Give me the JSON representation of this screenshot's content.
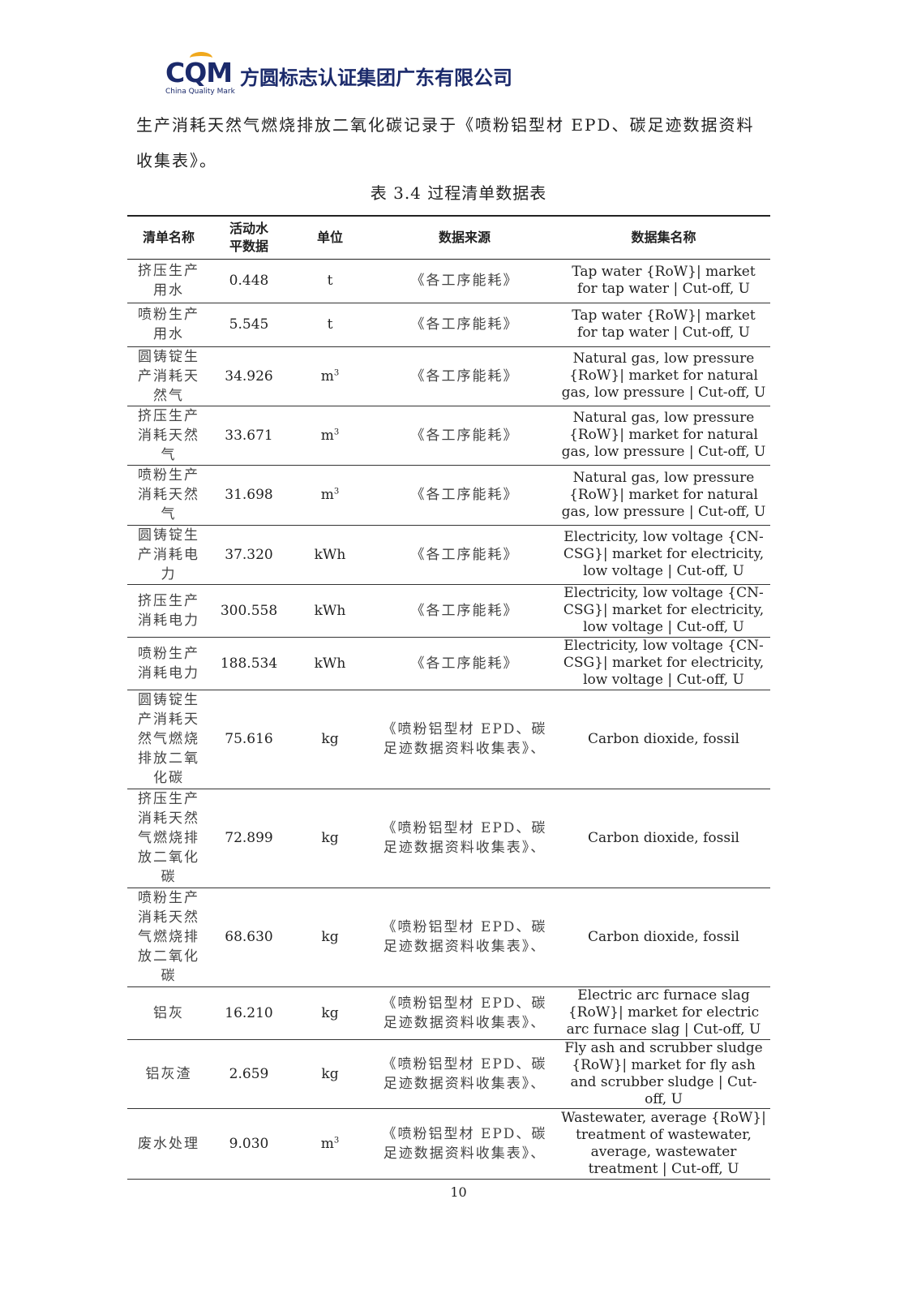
{
  "header": {
    "logo_text": "CQM",
    "logo_subtitle": "China Quality Mark",
    "company": "方圆标志认证集团广东有限公司",
    "brand_color": "#1b2a6b",
    "accent_color": "#f0a81c"
  },
  "paragraph": "生产消耗天然气燃烧排放二氧化碳记录于《喷粉铝型材 EPD、碳足迹数据资料收集表》。",
  "caption": "表 3.4 过程清单数据表",
  "table": {
    "headers": [
      "清单名称",
      "活动水平数据",
      "单位",
      "数据来源",
      "数据集名称"
    ],
    "rows": [
      {
        "name": "挤压生产用水",
        "value": "0.448",
        "unit": "t",
        "unit_sup": "",
        "source": "《各工序能耗》",
        "dataset": "Tap water {RoW}| market for tap water | Cut-off, U"
      },
      {
        "name": "喷粉生产用水",
        "value": "5.545",
        "unit": "t",
        "unit_sup": "",
        "source": "《各工序能耗》",
        "dataset": "Tap water {RoW}| market for tap water | Cut-off, U"
      },
      {
        "name": "圆铸锭生产消耗天然气",
        "value": "34.926",
        "unit": "m",
        "unit_sup": "3",
        "source": "《各工序能耗》",
        "dataset": "Natural gas, low pressure {RoW}| market for natural gas, low pressure | Cut-off, U"
      },
      {
        "name": "挤压生产消耗天然气",
        "value": "33.671",
        "unit": "m",
        "unit_sup": "3",
        "source": "《各工序能耗》",
        "dataset": "Natural gas, low pressure {RoW}| market for natural gas, low pressure | Cut-off, U"
      },
      {
        "name": "喷粉生产消耗天然气",
        "value": "31.698",
        "unit": "m",
        "unit_sup": "3",
        "source": "《各工序能耗》",
        "dataset": "Natural gas, low pressure {RoW}| market for natural gas, low pressure | Cut-off, U"
      },
      {
        "name": "圆铸锭生产消耗电力",
        "value": "37.320",
        "unit": "kWh",
        "unit_sup": "",
        "source": "《各工序能耗》",
        "dataset": "Electricity, low voltage {CN-CSG}| market for electricity, low voltage | Cut-off, U"
      },
      {
        "name": "挤压生产消耗电力",
        "value": "300.558",
        "unit": "kWh",
        "unit_sup": "",
        "source": "《各工序能耗》",
        "dataset": "Electricity, low voltage {CN-CSG}| market for electricity, low voltage | Cut-off, U"
      },
      {
        "name": "喷粉生产消耗电力",
        "value": "188.534",
        "unit": "kWh",
        "unit_sup": "",
        "source": "《各工序能耗》",
        "dataset": "Electricity, low voltage {CN-CSG}| market for electricity, low voltage | Cut-off, U"
      },
      {
        "name": "圆铸锭生产消耗天然气燃烧排放二氧化碳",
        "value": "75.616",
        "unit": "kg",
        "unit_sup": "",
        "source": "《喷粉铝型材 EPD、碳足迹数据资料收集表》、",
        "dataset": "Carbon dioxide, fossil"
      },
      {
        "name": "挤压生产消耗天然气燃烧排放二氧化碳",
        "value": "72.899",
        "unit": "kg",
        "unit_sup": "",
        "source": "《喷粉铝型材 EPD、碳足迹数据资料收集表》、",
        "dataset": "Carbon dioxide, fossil"
      },
      {
        "name": "喷粉生产消耗天然气燃烧排放二氧化碳",
        "value": "68.630",
        "unit": "kg",
        "unit_sup": "",
        "source": "《喷粉铝型材 EPD、碳足迹数据资料收集表》、",
        "dataset": "Carbon dioxide, fossil"
      },
      {
        "name": "铝灰",
        "value": "16.210",
        "unit": "kg",
        "unit_sup": "",
        "source": "《喷粉铝型材 EPD、碳足迹数据资料收集表》、",
        "dataset": "Electric arc furnace slag {RoW}| market for electric arc furnace slag | Cut-off, U"
      },
      {
        "name": "铝灰渣",
        "value": "2.659",
        "unit": "kg",
        "unit_sup": "",
        "source": "《喷粉铝型材 EPD、碳足迹数据资料收集表》、",
        "dataset": "Fly ash and scrubber sludge {RoW}| market for fly ash and scrubber sludge | Cut-off, U"
      },
      {
        "name": "废水处理",
        "value": "9.030",
        "unit": "m",
        "unit_sup": "3",
        "source": "《喷粉铝型材 EPD、碳足迹数据资料收集表》、",
        "dataset": "Wastewater, average {RoW}| treatment of wastewater, average, wastewater treatment | Cut-off, U"
      }
    ]
  },
  "page_number": "10"
}
